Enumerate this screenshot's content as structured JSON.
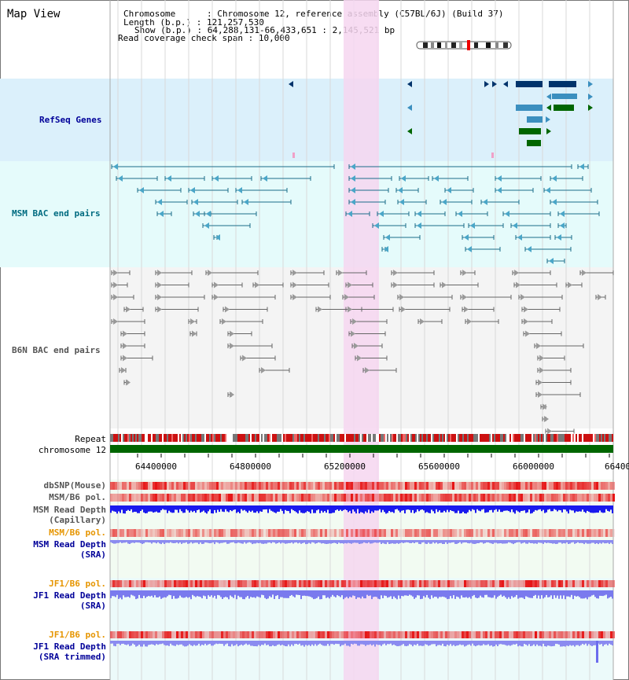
{
  "map_title": "Map View",
  "info": {
    "chromosome_label": "Chromosome",
    "chromosome_value": "Chromosome 12, reference assembly (C57BL/6J) (Build 37)",
    "length_label": "Length (b.p.)",
    "length_value": "121,257,530",
    "show_label": "Show (b.p.)",
    "show_value": "64,288,131-66,433,651 : 2,145,521 bp",
    "coverage_label": "Read coverage check span",
    "coverage_value": "10,000"
  },
  "tracks": {
    "refseq": "RefSeq Genes",
    "msm_bac": "MSM BAC end pairs",
    "b6n_bac": "B6N BAC end pairs",
    "repeat": "Repeat",
    "chromosome": "chromosome 12",
    "dbsnp": "dbSNP(Mouse)",
    "msm_b6_pol": "MSM/B6 pol.",
    "msm_read_depth_cap_1": "MSM Read Depth",
    "msm_read_depth_cap_2": "(Capillary)",
    "msm_b6_pol_sra": "MSM/B6 pol.",
    "msm_read_depth_sra_1": "MSM Read Depth",
    "msm_read_depth_sra_2": "(SRA)",
    "jf1_b6_pol_1": "JF1/B6 pol.",
    "jf1_read_depth_1": "JF1 Read Depth",
    "jf1_read_depth_1b": "(SRA)",
    "jf1_b6_pol_2": "JF1/B6 pol.",
    "jf1_read_depth_2": "JF1 Read Depth",
    "jf1_read_depth_2b": "(SRA trimmed)"
  },
  "axis_ticks": [
    "64400000",
    "64800000",
    "65200000",
    "65600000",
    "66000000",
    "66400"
  ],
  "colors": {
    "refseq_bg": "#dbf0fb",
    "msm_bac_bg": "#e5fbfb",
    "b6n_bac_bg": "#f4f4f4",
    "highlight": "#f6d6f0",
    "chromosome": "#006600",
    "msm_depth": "#1a1aee",
    "jf1_depth": "#7a7aee",
    "gene_dark": "#00336b",
    "gene_mid": "#3b8fbf",
    "gene_green": "#006600"
  }
}
